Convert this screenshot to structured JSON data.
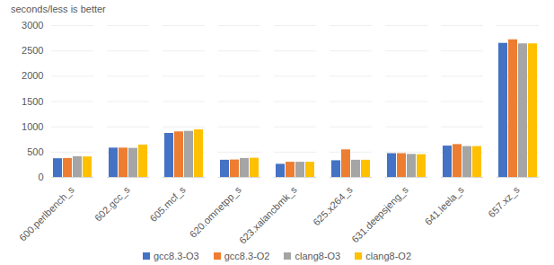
{
  "chart_data": {
    "type": "bar",
    "title": "seconds/less is better",
    "categories": [
      "600.perlbench_s",
      "602.gcc_s",
      "605.mcf_s",
      "620.omnetpp_s",
      "623.xalancbmk_s",
      "625.x264_s",
      "631.deepsjeng_s",
      "641.leela_s",
      "657.xz_s"
    ],
    "series": [
      {
        "name": "gcc8.3-O3",
        "color": "#4472c4",
        "values": [
          370,
          580,
          870,
          340,
          260,
          330,
          470,
          620,
          2650
        ]
      },
      {
        "name": "gcc8.3-O2",
        "color": "#ed7d31",
        "values": [
          375,
          580,
          900,
          345,
          300,
          545,
          470,
          650,
          2720
        ]
      },
      {
        "name": "clang8-O3",
        "color": "#a5a5a5",
        "values": [
          410,
          575,
          910,
          375,
          300,
          340,
          455,
          610,
          2640
        ]
      },
      {
        "name": "clang8-O2",
        "color": "#ffc000",
        "values": [
          405,
          640,
          940,
          380,
          300,
          340,
          450,
          610,
          2640
        ]
      }
    ],
    "ylim": [
      0,
      3000
    ],
    "yticks": [
      0,
      500,
      1000,
      1500,
      2000,
      2500,
      3000
    ],
    "grid": true,
    "legend": "bottom"
  }
}
